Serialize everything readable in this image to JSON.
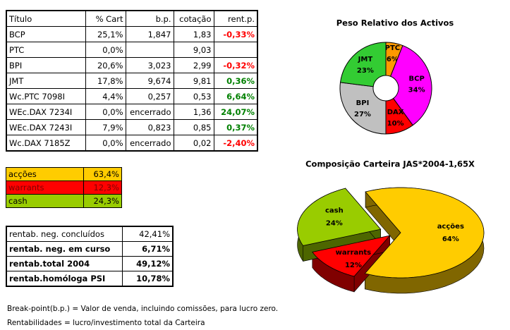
{
  "holdings": {
    "header": [
      "Título",
      "% Cart",
      "b.p.",
      "cotação",
      "rent.p."
    ],
    "rows": [
      [
        "BCP",
        "25,1%",
        "1,847",
        "1,83",
        "-0,33%"
      ],
      [
        "PTC",
        "0,0%",
        null,
        "9,03",
        null
      ],
      [
        "BPI",
        "20,6%",
        "3,023",
        "2,99",
        "-0,32%"
      ],
      [
        "JMT",
        "17,8%",
        "9,674",
        "9,81",
        "0,36%"
      ],
      [
        "Wc.PTC 7098I",
        "4,4%",
        "0,257",
        "0,53",
        "6,64%"
      ],
      [
        "WEc.DAX 7234I",
        "0,0%",
        "encerrado",
        "1,36",
        "24,07%"
      ],
      [
        "WEc.DAX 7243I",
        "7,9%",
        "0,823",
        "0,85",
        "0,37%"
      ],
      [
        "Wc.DAX 7185Z",
        "0,0%",
        "encerrado",
        "0,02",
        "-2,40%"
      ]
    ]
  },
  "allocation": {
    "rows": [
      [
        "acções",
        "63,4%"
      ],
      [
        "warrants",
        "12,3%"
      ],
      [
        "cash",
        "24,3%"
      ]
    ],
    "colors": [
      "#ffcc00",
      "#ff0000",
      "#99cc00"
    ]
  },
  "returns": {
    "rows": [
      [
        "rentab. neg. concluídos",
        "42,41%"
      ],
      [
        "rentab. neg. em curso",
        "6,71%"
      ],
      [
        "rentab.total 2004",
        "49,12%"
      ],
      [
        "rentab.homóloga PSI",
        "10,78%"
      ]
    ]
  },
  "notes": [
    "Break-point(b.p.) = Valor de venda, incluindo comissões, para lucro zero.",
    "Rentabilidades = lucro/investimento total da Carteira"
  ],
  "chart_data": [
    {
      "type": "donut",
      "title": "Peso Relativo dos Activos",
      "categories": [
        "PTC",
        "BCP",
        "DAX",
        "BPI",
        "JMT"
      ],
      "values": [
        6,
        34,
        10,
        27,
        23
      ],
      "value_labels": [
        "6%",
        "34%",
        "10%",
        "27%",
        "23%"
      ],
      "colors": [
        "#ff9900",
        "#ff00ff",
        "#ff0000",
        "#c0c0c0",
        "#33cc33"
      ]
    },
    {
      "type": "pie3d",
      "title": "Composição Carteira JAS*2004-1,65X",
      "categories": [
        "acções",
        "warrants",
        "cash"
      ],
      "values": [
        64,
        12,
        24
      ],
      "value_labels": [
        "64%",
        "12%",
        "24%"
      ],
      "colors": [
        "#ffcc00",
        "#ff0000",
        "#99cc00"
      ]
    }
  ]
}
